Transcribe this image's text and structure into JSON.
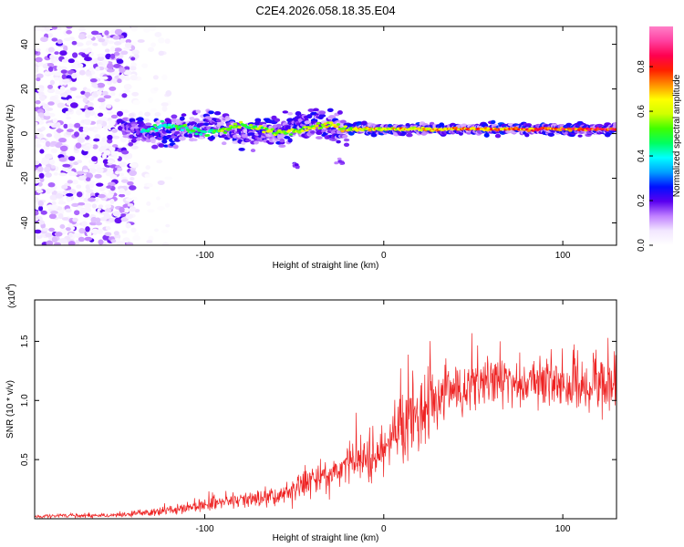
{
  "title": "C2E4.2026.058.18.35.E04",
  "chart_data": [
    {
      "type": "heatmap",
      "id": "spectrogram",
      "xlabel": "Height of straight line (km)",
      "ylabel": "Frequency (Hz)",
      "xlim": [
        -195,
        130
      ],
      "ylim": [
        -50,
        48
      ],
      "xticks": [
        -100,
        0,
        100
      ],
      "yticks": [
        -40,
        -20,
        0,
        20,
        40
      ],
      "colorbar": {
        "label": "Normalized spectral amplitude",
        "range": [
          0,
          0.98
        ],
        "ticks": [
          0.0,
          0.2,
          0.4,
          0.6,
          0.8
        ],
        "tick_labels": [
          "0.0",
          "0.2",
          "0.4",
          "0.6",
          "0.8"
        ],
        "colormap": [
          "#ffffff",
          "#f2e6ff",
          "#c080ff",
          "#5a00f0",
          "#0010ff",
          "#00a0ff",
          "#00ffff",
          "#00ff60",
          "#40ff00",
          "#d0ff00",
          "#ffff00",
          "#ff9000",
          "#ff2000",
          "#ff0050",
          "#ff40a0",
          "#ff80c8"
        ]
      },
      "features": [
        {
          "name": "noise",
          "x_range": [
            -195,
            -120
          ],
          "y_range": [
            -50,
            48
          ],
          "amplitude": 0.12
        },
        {
          "name": "main_ridge",
          "x_range": [
            -145,
            130
          ],
          "center_hz": 2,
          "amplitude_start": 0.4,
          "amplitude_end": 0.9
        },
        {
          "name": "blob",
          "x": -49,
          "y": -14,
          "amplitude": 0.2
        },
        {
          "name": "blob",
          "x": -24,
          "y": -13,
          "amplitude": 0.15
        }
      ]
    },
    {
      "type": "line",
      "id": "snr",
      "xlabel": "Height of straight line (km)",
      "ylabel": "SNR (10 * v/v)",
      "scale_label": "(x10^4)",
      "scale_base": "(x10",
      "scale_exp": "4",
      "xlim": [
        -195,
        130
      ],
      "ylim": [
        0,
        1.85
      ],
      "xticks": [
        -100,
        0,
        100
      ],
      "yticks": [
        0.5,
        1.0,
        1.5
      ],
      "ytick_labels": [
        "0.5",
        "1.0",
        "1.5"
      ],
      "color": "#ee2222",
      "trend_x": [
        -195,
        -150,
        -125,
        -100,
        -80,
        -60,
        -45,
        -30,
        -20,
        -10,
        0,
        10,
        20,
        35,
        50,
        70,
        90,
        110,
        130
      ],
      "trend_y": [
        0.02,
        0.03,
        0.06,
        0.12,
        0.16,
        0.18,
        0.3,
        0.38,
        0.45,
        0.5,
        0.55,
        0.75,
        0.95,
        1.08,
        1.13,
        1.15,
        1.15,
        1.12,
        1.14
      ],
      "samples": 1300
    }
  ]
}
